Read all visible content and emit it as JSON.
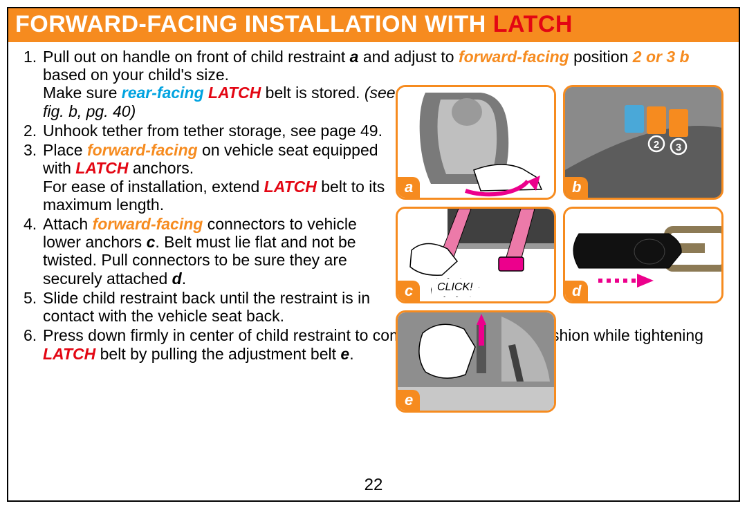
{
  "colors": {
    "title_bg": "#f68b1f",
    "title_text": "#ffffff",
    "accent_red": "#e30613",
    "accent_blue": "#00a3e0",
    "accent_orange": "#f68b1f",
    "body_text": "#000000",
    "pink_arrow": "#ec008c",
    "fig_border": "#f68b1f",
    "page_border": "#000000",
    "background": "#ffffff"
  },
  "typography": {
    "title_fontsize": 34,
    "body_fontsize": 23,
    "fig_label_fontsize": 22,
    "page_num_fontsize": 24,
    "title_weight": 800,
    "body_lineheight": 1.14
  },
  "title": {
    "main": "FORWARD-FACING INSTALLATION WITH ",
    "accent": "LATCH"
  },
  "steps": [
    {
      "n": "1.",
      "segments": [
        {
          "t": "Pull out on handle on front of child restraint "
        },
        {
          "t": "a",
          "cls": "bold-it"
        },
        {
          "t": " and adjust to "
        },
        {
          "t": "forward-facing",
          "cls": "orange"
        },
        {
          "t": " position "
        },
        {
          "t": "2 or 3 b",
          "cls": "orange"
        },
        {
          "t": " based on your child's size."
        }
      ],
      "segments2": [
        {
          "t": "Make sure "
        },
        {
          "t": "rear-facing",
          "cls": "blue"
        },
        {
          "t": " "
        },
        {
          "t": "LATCH",
          "cls": "red"
        },
        {
          "t": " belt is stored. "
        },
        {
          "t": "(see fig. b, pg. 40)",
          "cls": "ital"
        }
      ],
      "narrow2": true
    },
    {
      "n": "2.",
      "segments": [
        {
          "t": "Unhook tether from tether storage, see page 49."
        }
      ],
      "narrow": true
    },
    {
      "n": "3.",
      "segments": [
        {
          "t": "Place "
        },
        {
          "t": "forward-facing",
          "cls": "orange"
        },
        {
          "t": " on vehicle seat equipped with "
        },
        {
          "t": "LATCH",
          "cls": "red"
        },
        {
          "t": " anchors."
        }
      ],
      "segments2": [
        {
          "t": "For ease of installation, extend "
        },
        {
          "t": "LATCH",
          "cls": "red"
        },
        {
          "t": " belt to its maximum length."
        }
      ],
      "narrow": true,
      "narrow2": true
    },
    {
      "n": "4.",
      "segments": [
        {
          "t": "Attach "
        },
        {
          "t": "forward-facing",
          "cls": "orange"
        },
        {
          "t": " connectors to vehicle lower anchors "
        },
        {
          "t": "c",
          "cls": "bold-it"
        },
        {
          "t": ". Belt must lie flat and not be twisted. Pull connectors to be sure they are securely attached "
        },
        {
          "t": "d",
          "cls": "bold-it"
        },
        {
          "t": "."
        }
      ],
      "narrow": true
    },
    {
      "n": "5.",
      "segments": [
        {
          "t": "Slide child restraint back until the restraint is in contact with the vehicle seat back."
        }
      ],
      "narrow": true
    },
    {
      "n": "6.",
      "segments": [
        {
          "t": "Press down firmly in center of child restraint to compress vehicle seat cushion while tightening "
        },
        {
          "t": "LATCH",
          "cls": "red"
        },
        {
          "t": " belt by pulling the adjustment belt "
        },
        {
          "t": "e",
          "cls": "bold-it"
        },
        {
          "t": "."
        }
      ]
    }
  ],
  "figures": {
    "a": {
      "label": "a",
      "click_text": ""
    },
    "b": {
      "label": "b",
      "tag_colors": [
        "#4aa8d8",
        "#f68b1f",
        "#f68b1f"
      ],
      "tag_nums": [
        "",
        "2",
        "3"
      ]
    },
    "c": {
      "label": "c",
      "click_text": "CLICK!"
    },
    "d": {
      "label": "d"
    },
    "e": {
      "label": "e"
    }
  },
  "page_number": "22"
}
